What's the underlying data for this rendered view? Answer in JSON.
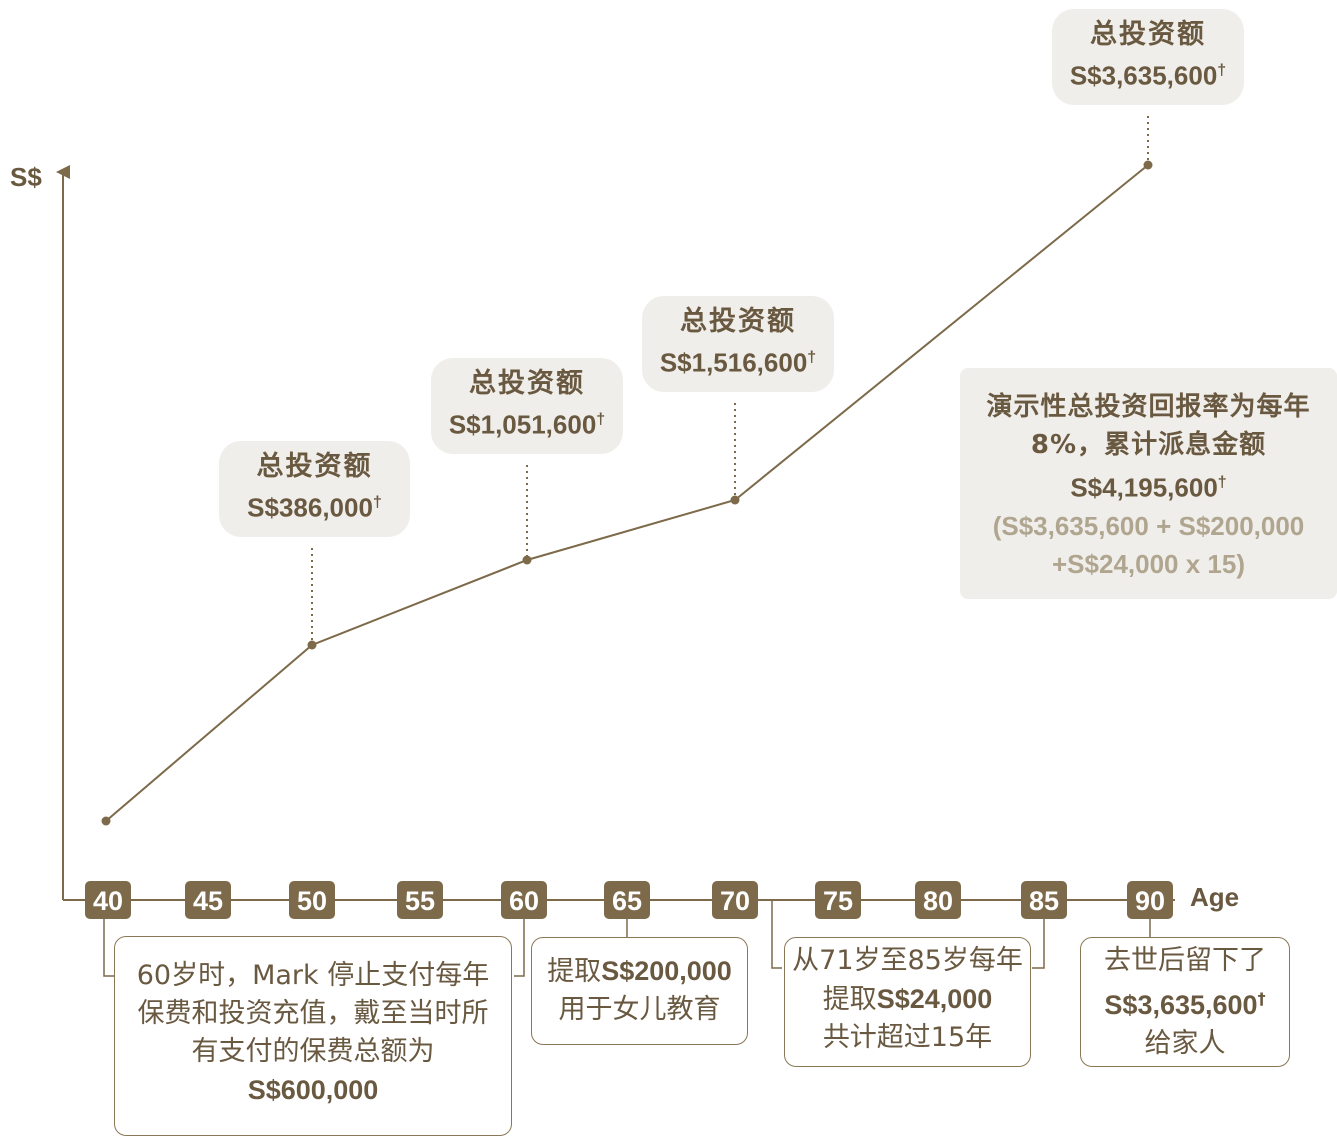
{
  "chart_data": {
    "type": "line",
    "ylabel": "S$",
    "xlabel": "Age",
    "x_ticks": [
      40,
      45,
      50,
      55,
      60,
      65,
      70,
      75,
      80,
      85,
      90
    ],
    "series": [
      {
        "x": [
          40,
          50,
          60,
          70,
          90
        ],
        "y": [
          0,
          386000,
          1051600,
          1516600,
          3635600
        ]
      }
    ],
    "callouts": [
      {
        "title": "总投资额",
        "amount": "S$386,000",
        "mark": "†"
      },
      {
        "title": "总投资额",
        "amount": "S$1,051,600",
        "mark": "†"
      },
      {
        "title": "总投资额",
        "amount": "S$1,516,600",
        "mark": "†"
      },
      {
        "title": "总投资额",
        "amount": "S$3,635,600",
        "mark": "†"
      }
    ],
    "summary": {
      "line1": "演示性总投资回报率为每年8%，累计派息金额",
      "amount": "S$4,195,600",
      "mark": "†",
      "line3": "(S$3,635,600 + S$200,000 +S$24,000 x 15)"
    },
    "notes": [
      {
        "text_a": "60岁时，Mark 停止支付每年保费和投资充值，戴至当时所有支付的保费总额为",
        "bold": "S$600,000"
      },
      {
        "text_a": "提取",
        "bold": "S$200,000",
        "text_b": "用于女儿教育"
      },
      {
        "text_a": "从71岁至85岁每年提取",
        "bold": "S$24,000",
        "text_b": "共计超过15年"
      },
      {
        "text_a": "去世后留下了",
        "bold": "S$3,635,600",
        "mark": "†",
        "text_b": "给家人"
      }
    ],
    "colors": {
      "accent": "#7d6a4a",
      "callout_bg": "#f0eeea",
      "muted_text": "#b0a58f"
    }
  }
}
